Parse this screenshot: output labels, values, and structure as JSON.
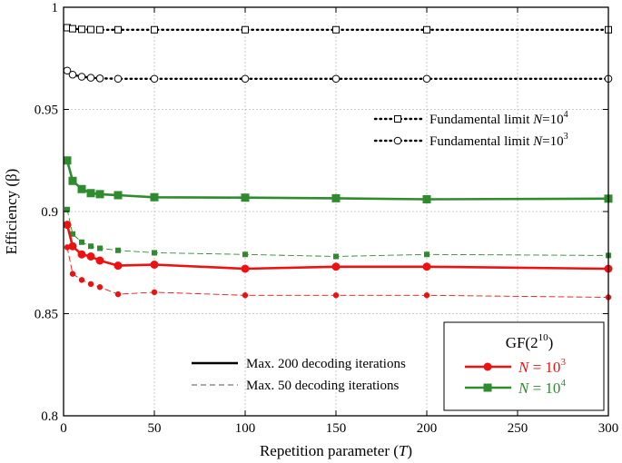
{
  "chart_data": {
    "type": "line",
    "xlabel": "Repetition parameter",
    "xlabel_var": "T",
    "ylabel": "Efficiency (β)",
    "xlim": [
      0,
      300
    ],
    "ylim": [
      0.8,
      1.0
    ],
    "xticks": [
      0,
      50,
      100,
      150,
      200,
      250,
      300
    ],
    "yticks": [
      0.8,
      0.85,
      0.9,
      0.95,
      1.0
    ],
    "ytick_labels": [
      "0.8",
      "0.85",
      "0.9",
      "0.95",
      "1"
    ],
    "grid": true,
    "series": [
      {
        "key": "lim4",
        "color": "#000000",
        "style": "dotted",
        "marker": "square-open",
        "x": [
          2,
          5,
          10,
          15,
          20,
          30,
          50,
          100,
          150,
          200,
          300
        ],
        "y": [
          0.99,
          0.9895,
          0.9892,
          0.9891,
          0.989,
          0.989,
          0.989,
          0.989,
          0.989,
          0.989,
          0.989
        ]
      },
      {
        "key": "lim3",
        "color": "#000000",
        "style": "dotted",
        "marker": "circle-open",
        "x": [
          2,
          5,
          10,
          15,
          20,
          30,
          50,
          100,
          150,
          200,
          300
        ],
        "y": [
          0.969,
          0.967,
          0.966,
          0.9655,
          0.9652,
          0.965,
          0.965,
          0.965,
          0.965,
          0.965,
          0.965
        ]
      },
      {
        "key": "g200",
        "color": "#2e8b2e",
        "style": "solid",
        "marker": "square",
        "x": [
          2,
          5,
          10,
          15,
          20,
          30,
          50,
          100,
          150,
          200,
          300
        ],
        "y": [
          0.925,
          0.915,
          0.911,
          0.909,
          0.9085,
          0.908,
          0.907,
          0.9068,
          0.9065,
          0.906,
          0.9063
        ]
      },
      {
        "key": "g50",
        "color": "#2e8b2e",
        "style": "dashed",
        "marker": "square",
        "x": [
          2,
          5,
          10,
          15,
          20,
          30,
          50,
          100,
          150,
          200,
          300
        ],
        "y": [
          0.901,
          0.889,
          0.885,
          0.883,
          0.882,
          0.881,
          0.8798,
          0.879,
          0.878,
          0.879,
          0.8785
        ]
      },
      {
        "key": "r200",
        "color": "#ee1111",
        "style": "solid",
        "marker": "circle",
        "x": [
          2,
          5,
          10,
          15,
          20,
          30,
          50,
          100,
          150,
          200,
          300
        ],
        "y": [
          0.8935,
          0.883,
          0.879,
          0.878,
          0.876,
          0.8735,
          0.874,
          0.872,
          0.873,
          0.873,
          0.872
        ]
      },
      {
        "key": "r50",
        "color": "#ee1111",
        "style": "dashed",
        "marker": "circle",
        "x": [
          2,
          5,
          10,
          15,
          20,
          30,
          50,
          100,
          150,
          200,
          300
        ],
        "y": [
          0.8825,
          0.8695,
          0.8665,
          0.8645,
          0.863,
          0.8595,
          0.8605,
          0.859,
          0.859,
          0.859,
          0.858
        ]
      }
    ],
    "legend_top": {
      "placement": "upper-right",
      "entries": [
        {
          "series": "lim4",
          "label": "Fundamental limit",
          "var": "N",
          "value": "=10",
          "exp": "4"
        },
        {
          "series": "lim3",
          "label": "Fundamental limit",
          "var": "N",
          "value": "=10",
          "exp": "3"
        }
      ]
    },
    "legend_style": {
      "placement": "lower-center",
      "entries": [
        {
          "style": "solid",
          "label": "Max. 200 decoding iterations"
        },
        {
          "style": "dashed",
          "label": "Max. 50 decoding iterations"
        }
      ]
    },
    "legend_field": {
      "placement": "lower-right",
      "title": "GF(2",
      "title_exp": "10",
      "title_close": ")",
      "entries": [
        {
          "series": "r200",
          "var": "N",
          "value": " = 10",
          "exp": "3"
        },
        {
          "series": "g200",
          "var": "N",
          "value": " = 10",
          "exp": "4"
        }
      ]
    }
  }
}
